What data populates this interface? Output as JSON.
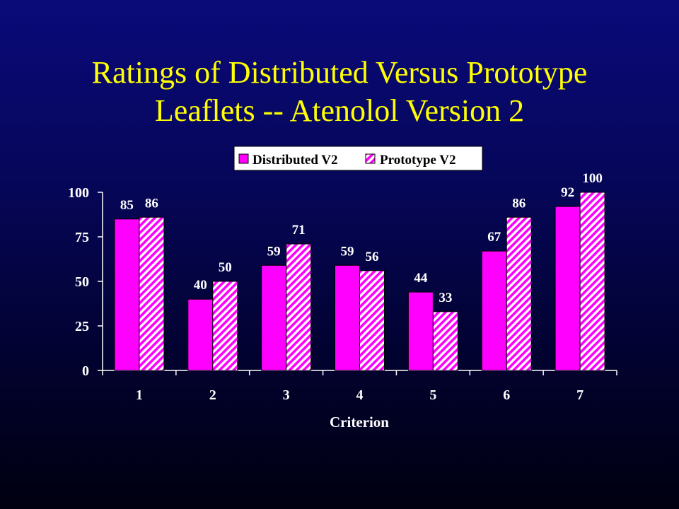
{
  "slide": {
    "title_line1": "Ratings of Distributed Versus Prototype",
    "title_line2": "Leaflets -- Atenolol Version 2"
  },
  "colors": {
    "series1": "#ff00ff",
    "series2": "#ff00ff",
    "series2_stripe_bg": "#ffffff",
    "axis": "#ffffff",
    "legend_bg": "#ffffff"
  },
  "chart_data": {
    "type": "bar",
    "title": "",
    "xlabel": "Criterion",
    "ylabel": "",
    "categories": [
      "1",
      "2",
      "3",
      "4",
      "5",
      "6",
      "7"
    ],
    "series": [
      {
        "name": "Distributed V2",
        "pattern": "solid",
        "values": [
          85,
          40,
          59,
          59,
          44,
          67,
          92
        ]
      },
      {
        "name": "Prototype V2",
        "pattern": "diagonal-stripes",
        "values": [
          86,
          50,
          71,
          56,
          33,
          86,
          100
        ]
      }
    ],
    "ylim": [
      0,
      100
    ],
    "yticks": [
      0,
      25,
      50,
      75,
      100
    ],
    "grid": false,
    "data_labels": true,
    "legend_position": "top-right"
  }
}
